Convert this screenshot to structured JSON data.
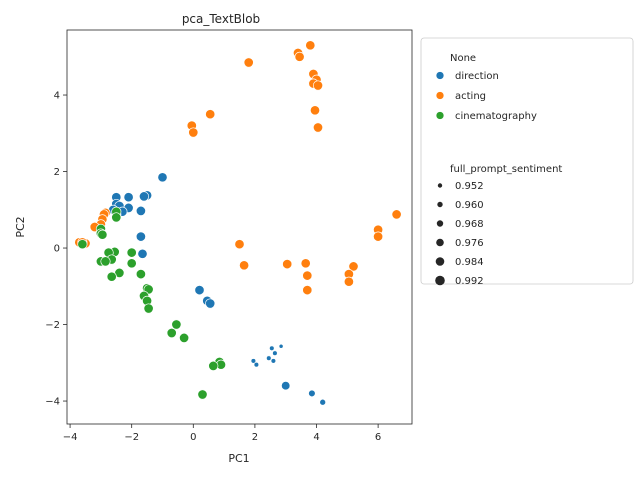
{
  "chart_data": {
    "type": "scatter",
    "title": "pca_TextBlob",
    "xlabel": "PC1",
    "ylabel": "PC2",
    "xlim": [
      -4.1,
      7.1
    ],
    "ylim": [
      -4.6,
      5.7
    ],
    "xticks": [
      -4,
      -2,
      0,
      2,
      4,
      6
    ],
    "yticks": [
      -4,
      -2,
      0,
      2,
      4
    ],
    "grid": false,
    "legend": {
      "placement": "outside-right",
      "hue_title": "None",
      "size_title": "full_prompt_sentiment",
      "size_entries": [
        "0.952",
        "0.960",
        "0.968",
        "0.976",
        "0.984",
        "0.992"
      ]
    },
    "series": [
      {
        "name": "direction",
        "color": "#1f77b4",
        "points": [
          [
            -1.0,
            1.85,
            0.99
          ],
          [
            -2.5,
            1.33,
            0.99
          ],
          [
            -2.1,
            1.33,
            0.99
          ],
          [
            -1.5,
            1.38,
            0.99
          ],
          [
            -1.6,
            1.35,
            0.99
          ],
          [
            -2.5,
            1.15,
            0.99
          ],
          [
            -2.4,
            1.1,
            0.99
          ],
          [
            -2.1,
            1.05,
            0.99
          ],
          [
            -2.6,
            1.0,
            0.99
          ],
          [
            -2.3,
            0.95,
            0.99
          ],
          [
            -1.7,
            0.97,
            0.99
          ],
          [
            -2.5,
            0.88,
            0.99
          ],
          [
            -1.7,
            0.3,
            0.99
          ],
          [
            -1.65,
            -0.15,
            0.99
          ],
          [
            0.2,
            -1.1,
            0.99
          ],
          [
            0.45,
            -1.38,
            0.99
          ],
          [
            0.55,
            -1.45,
            0.99
          ],
          [
            2.85,
            -2.57,
            0.95
          ],
          [
            2.55,
            -2.62,
            0.955
          ],
          [
            2.65,
            -2.75,
            0.955
          ],
          [
            2.45,
            -2.88,
            0.955
          ],
          [
            2.6,
            -2.95,
            0.955
          ],
          [
            1.95,
            -2.95,
            0.955
          ],
          [
            2.05,
            -3.05,
            0.955
          ],
          [
            3.0,
            -3.6,
            0.985
          ],
          [
            3.85,
            -3.8,
            0.97
          ],
          [
            4.2,
            -4.03,
            0.965
          ]
        ]
      },
      {
        "name": "acting",
        "color": "#ff7f0e",
        "points": [
          [
            3.8,
            5.3,
            0.99
          ],
          [
            3.4,
            5.1,
            0.99
          ],
          [
            3.45,
            5.0,
            0.99
          ],
          [
            1.8,
            4.85,
            0.99
          ],
          [
            3.9,
            4.55,
            0.99
          ],
          [
            4.0,
            4.4,
            0.99
          ],
          [
            3.9,
            4.3,
            0.99
          ],
          [
            4.05,
            4.25,
            0.99
          ],
          [
            3.95,
            3.6,
            0.99
          ],
          [
            4.05,
            3.15,
            0.99
          ],
          [
            0.55,
            3.5,
            0.99
          ],
          [
            -0.05,
            3.2,
            0.99
          ],
          [
            0.0,
            3.02,
            0.99
          ],
          [
            -2.85,
            0.92,
            0.99
          ],
          [
            -2.9,
            0.88,
            0.99
          ],
          [
            -2.95,
            0.75,
            0.99
          ],
          [
            -3.0,
            0.62,
            0.99
          ],
          [
            -3.2,
            0.55,
            0.99
          ],
          [
            6.6,
            0.88,
            0.99
          ],
          [
            6.0,
            0.48,
            0.99
          ],
          [
            6.0,
            0.3,
            0.99
          ],
          [
            -3.7,
            0.15,
            0.99
          ],
          [
            -3.5,
            0.12,
            0.99
          ],
          [
            -3.6,
            0.15,
            0.99
          ],
          [
            1.5,
            0.1,
            0.99
          ],
          [
            3.05,
            -0.42,
            0.99
          ],
          [
            3.65,
            -0.4,
            0.99
          ],
          [
            1.65,
            -0.45,
            0.99
          ],
          [
            5.2,
            -0.48,
            0.99
          ],
          [
            5.05,
            -0.68,
            0.99
          ],
          [
            3.7,
            -0.72,
            0.99
          ],
          [
            5.05,
            -0.88,
            0.99
          ],
          [
            3.7,
            -1.1,
            0.99
          ]
        ]
      },
      {
        "name": "cinematography",
        "color": "#2ca02c",
        "points": [
          [
            -2.5,
            0.95,
            0.99
          ],
          [
            -2.5,
            0.8,
            0.99
          ],
          [
            -3.0,
            0.5,
            0.99
          ],
          [
            -3.0,
            0.38,
            0.99
          ],
          [
            -2.95,
            0.35,
            0.99
          ],
          [
            -3.6,
            0.1,
            0.99
          ],
          [
            -2.55,
            -0.1,
            0.99
          ],
          [
            -2.75,
            -0.12,
            0.99
          ],
          [
            -2.0,
            -0.12,
            0.99
          ],
          [
            -2.65,
            -0.3,
            0.99
          ],
          [
            -3.0,
            -0.35,
            0.99
          ],
          [
            -2.85,
            -0.35,
            0.99
          ],
          [
            -2.0,
            -0.4,
            0.99
          ],
          [
            -2.4,
            -0.65,
            0.99
          ],
          [
            -1.7,
            -0.68,
            0.99
          ],
          [
            -2.65,
            -0.75,
            0.99
          ],
          [
            -1.5,
            -1.05,
            0.99
          ],
          [
            -1.45,
            -1.08,
            0.99
          ],
          [
            -1.6,
            -1.25,
            0.99
          ],
          [
            -1.5,
            -1.38,
            0.99
          ],
          [
            -1.45,
            -1.58,
            0.99
          ],
          [
            -0.55,
            -2.0,
            0.99
          ],
          [
            -0.7,
            -2.22,
            0.99
          ],
          [
            -0.3,
            -2.35,
            0.99
          ],
          [
            0.85,
            -2.98,
            0.99
          ],
          [
            0.9,
            -3.05,
            0.99
          ],
          [
            0.65,
            -3.08,
            0.99
          ],
          [
            0.3,
            -3.83,
            0.99
          ]
        ]
      }
    ]
  }
}
